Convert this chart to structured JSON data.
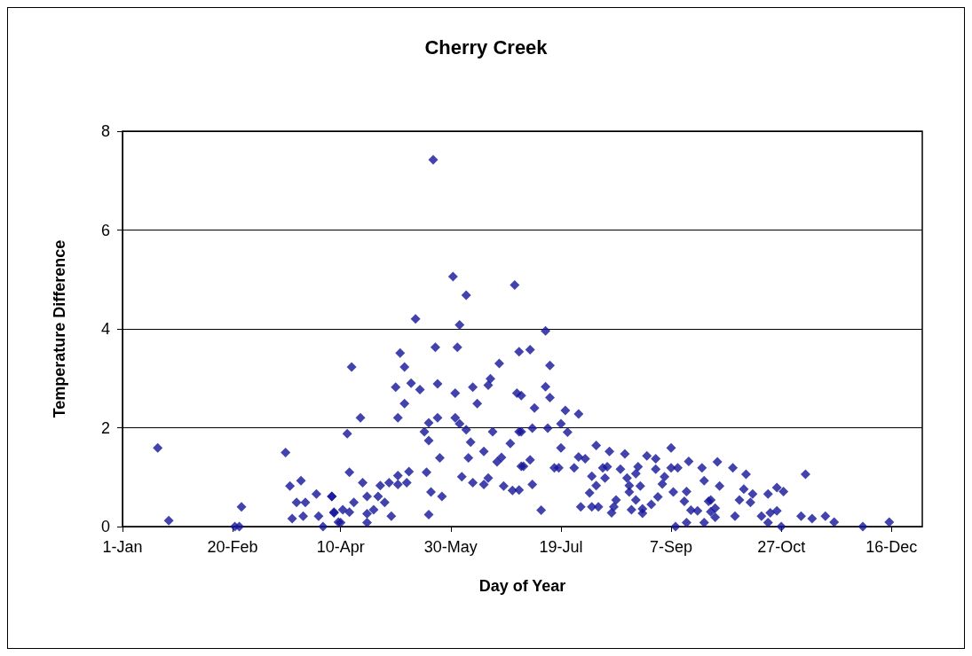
{
  "chart_data": {
    "type": "scatter",
    "title": "Cherry Creek",
    "xlabel": "Day of Year",
    "ylabel": "Temperature Difference",
    "x": [
      "--01-17",
      "--01-22",
      "--02-21",
      "--02-23",
      "--02-24",
      "--03-16",
      "--03-23",
      "--03-18",
      "--03-21",
      "--03-25",
      "--03-30",
      "--04-06",
      "--03-19",
      "--03-24",
      "--03-31",
      "--04-02",
      "--04-07",
      "--04-09",
      "--05-22",
      "--05-31",
      "--06-06",
      "--06-28",
      "--05-14",
      "--06-03",
      "--05-07",
      "--05-23",
      "--06-02",
      "--06-30",
      "--06-21",
      "--04-15",
      "--05-09",
      "--05-05",
      "--05-12",
      "--05-16",
      "--05-24",
      "--06-01",
      "--06-09",
      "--06-17",
      "--06-16",
      "--06-29",
      "--07-01",
      "--05-09",
      "--06-11",
      "--04-19",
      "--05-06",
      "--05-24",
      "--06-01",
      "--05-20",
      "--06-03",
      "--05-18",
      "--06-06",
      "--04-13",
      "--06-18",
      "--06-30",
      "--05-20",
      "--06-08",
      "--06-26",
      "--06-14",
      "--05-25",
      "--06-07",
      "--06-22",
      "--06-20",
      "--07-01",
      "--04-14",
      "--05-19",
      "--05-11",
      "--06-04",
      "--04-20",
      "--05-06",
      "--04-28",
      "--05-02",
      "--05-06",
      "--05-10",
      "--06-09",
      "--06-14",
      "--06-16",
      "--06-23",
      "--06-27",
      "--04-06",
      "--04-22",
      "--05-21",
      "--05-26",
      "--04-27",
      "--04-16",
      "--04-30",
      "--04-07",
      "--04-11",
      "--04-14",
      "--04-22",
      "--04-25",
      "--05-03",
      "--05-20",
      "--04-10",
      "--04-22",
      "--07-12",
      "--07-05",
      "--07-14",
      "--07-12",
      "--07-14",
      "--07-07",
      "--07-21",
      "--07-27",
      "--07-19",
      "--07-01",
      "--07-06",
      "--07-13",
      "--07-22",
      "--07-19",
      "--08-04",
      "--08-10",
      "--08-17",
      "--09-07",
      "--08-27",
      "--08-31",
      "--07-05",
      "--07-27",
      "--07-30",
      "--09-15",
      "--09-21",
      "--07-02",
      "--07-16",
      "--07-18",
      "--07-25",
      "--08-07",
      "--08-09",
      "--08-15",
      "--08-23",
      "--08-31",
      "--09-07",
      "--09-10",
      "--08-22",
      "--08-02",
      "--08-08",
      "--08-18",
      "--09-04",
      "--09-22",
      "--09-03",
      "--07-06",
      "--08-04",
      "--08-19",
      "--08-24",
      "--08-01",
      "--08-19",
      "--09-08",
      "--09-14",
      "--09-01",
      "--08-22",
      "--09-13",
      "--08-13",
      "--09-24",
      "--07-28",
      "--08-02",
      "--08-05",
      "--08-12",
      "--08-29",
      "--09-16",
      "--09-19",
      "--08-20",
      "--08-25",
      "--08-11",
      "--08-25",
      "--07-10",
      "--09-25",
      "--09-14",
      "--09-22",
      "--09-09",
      "--06-30",
      "--09-28",
      "--10-05",
      "--10-11",
      "--11-07",
      "--09-29",
      "--10-10",
      "--10-14",
      "--10-21",
      "--10-25",
      "--10-28",
      "--10-08",
      "--10-13",
      "--09-25",
      "--09-27",
      "--09-27",
      "--10-06",
      "--10-18",
      "--10-22",
      "--10-25",
      "--10-21",
      "--10-27",
      "--11-05",
      "--11-10",
      "--11-16",
      "--11-20",
      "--12-03",
      "--12-15"
    ],
    "values": [
      1.59,
      0.12,
      0,
      0,
      0.4,
      1.5,
      0.93,
      0.82,
      0.49,
      0.49,
      0.66,
      0.61,
      0.16,
      0.21,
      0.21,
      0,
      0.28,
      0.09,
      7.42,
      5.06,
      4.68,
      4.89,
      4.2,
      4.08,
      3.51,
      3.63,
      3.63,
      3.54,
      3.3,
      3.23,
      3.23,
      2.82,
      2.9,
      2.77,
      2.89,
      2.7,
      2.82,
      2.99,
      2.86,
      2.7,
      2.65,
      2.49,
      2.49,
      2.2,
      2.2,
      2.2,
      2.2,
      2.1,
      2.08,
      1.92,
      1.96,
      1.88,
      1.92,
      1.92,
      1.74,
      1.71,
      1.68,
      1.52,
      1.39,
      1.39,
      1.4,
      1.31,
      1.22,
      1.1,
      1.1,
      1.11,
      1.01,
      0.89,
      1.03,
      0.83,
      0.89,
      0.85,
      0.89,
      0.89,
      0.85,
      0.98,
      0.82,
      0.73,
      0.61,
      0.61,
      0.7,
      0.61,
      0.61,
      0.49,
      0.49,
      0.29,
      0.34,
      0.29,
      0.26,
      0.34,
      0.21,
      0.24,
      0.08,
      0.08,
      3.96,
      3.58,
      3.26,
      2.83,
      2.61,
      2.4,
      2.35,
      2.28,
      2.08,
      1.92,
      1.99,
      1.99,
      1.91,
      1.59,
      1.64,
      1.52,
      1.47,
      1.59,
      1.43,
      1.37,
      1.35,
      1.41,
      1.37,
      1.32,
      1.19,
      1.22,
      1.19,
      1.19,
      1.19,
      1.19,
      1.21,
      1.16,
      1.21,
      1.16,
      1.19,
      1.19,
      1.07,
      1.02,
      0.98,
      0.98,
      1.01,
      0.93,
      0.86,
      0.85,
      0.83,
      0.83,
      0.82,
      0.68,
      0.7,
      0.7,
      0.71,
      0.6,
      0.54,
      0.51,
      0.54,
      0.51,
      0.4,
      0.4,
      0.4,
      0.4,
      0.45,
      0.33,
      0.32,
      0.34,
      0.36,
      0.28,
      0.27,
      0.33,
      0.3,
      0.08,
      0.08,
      0,
      0.74,
      1.31,
      1.19,
      1.06,
      1.06,
      0.82,
      0.76,
      0.66,
      0.66,
      0.79,
      0.71,
      0.54,
      0.49,
      0.54,
      0.37,
      0.19,
      0.21,
      0.21,
      0.28,
      0.32,
      0.08,
      0,
      0.21,
      0.16,
      0.21,
      0.09,
      0,
      0.09
    ],
    "color": "#14149a",
    "marker": "diamond",
    "xlim": [
      "--01-01",
      "--12-30"
    ],
    "xticks": [
      {
        "value": "--01-01",
        "label": "1-Jan"
      },
      {
        "value": "--02-20",
        "label": "20-Feb"
      },
      {
        "value": "--04-10",
        "label": "10-Apr"
      },
      {
        "value": "--05-30",
        "label": "30-May"
      },
      {
        "value": "--07-19",
        "label": "19-Jul"
      },
      {
        "value": "--09-07",
        "label": "7-Sep"
      },
      {
        "value": "--10-27",
        "label": "27-Oct"
      },
      {
        "value": "--12-16",
        "label": "16-Dec"
      }
    ],
    "ylim": [
      0,
      8
    ],
    "yticks": [
      0,
      2,
      4,
      6,
      8
    ],
    "grid": "y"
  }
}
